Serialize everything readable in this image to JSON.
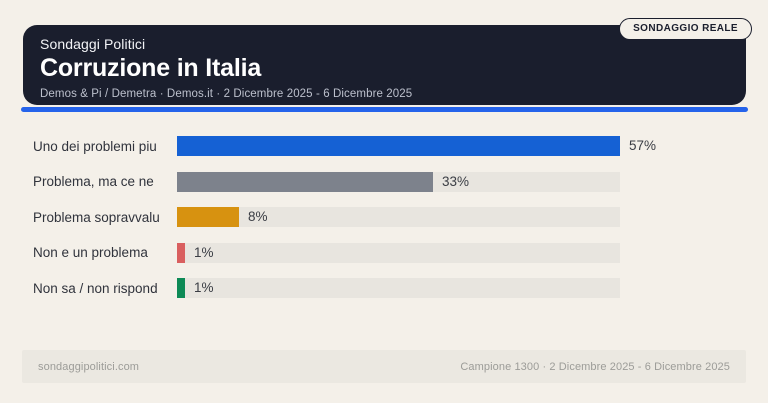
{
  "page": {
    "background": "#f4f0e9"
  },
  "header": {
    "kicker": "Sondaggi Politici",
    "title": "Corruzione in Italia",
    "subtitle": "Demos & Pi / Demetra · Demos.it · 2 Dicembre 2025 - 6 Dicembre 2025",
    "badge": "SONDAGGIO REALE",
    "card_color": "#1a1e2d",
    "accent_color": "#2563eb"
  },
  "chart_data": {
    "type": "bar",
    "orientation": "horizontal",
    "title": "Corruzione in Italia",
    "categories": [
      "Uno dei problemi piu",
      "Problema, ma ce ne",
      "Problema sopravvalu",
      "Non e un problema",
      "Non sa / non rispond"
    ],
    "values": [
      57,
      33,
      8,
      1,
      1
    ],
    "value_labels": [
      "57%",
      "33%",
      "8%",
      "1%",
      "1%"
    ],
    "bar_colors": [
      "#1561d4",
      "#7d828c",
      "#d79210",
      "#d95f5f",
      "#0d8a56"
    ],
    "track_color": "#e8e5df",
    "unit": "%",
    "xlim": [
      0,
      57
    ],
    "grid": false,
    "legend": false
  },
  "footer": {
    "left": "sondaggipolitici.com",
    "right": "Campione 1300 · 2 Dicembre 2025 - 6 Dicembre 2025"
  }
}
